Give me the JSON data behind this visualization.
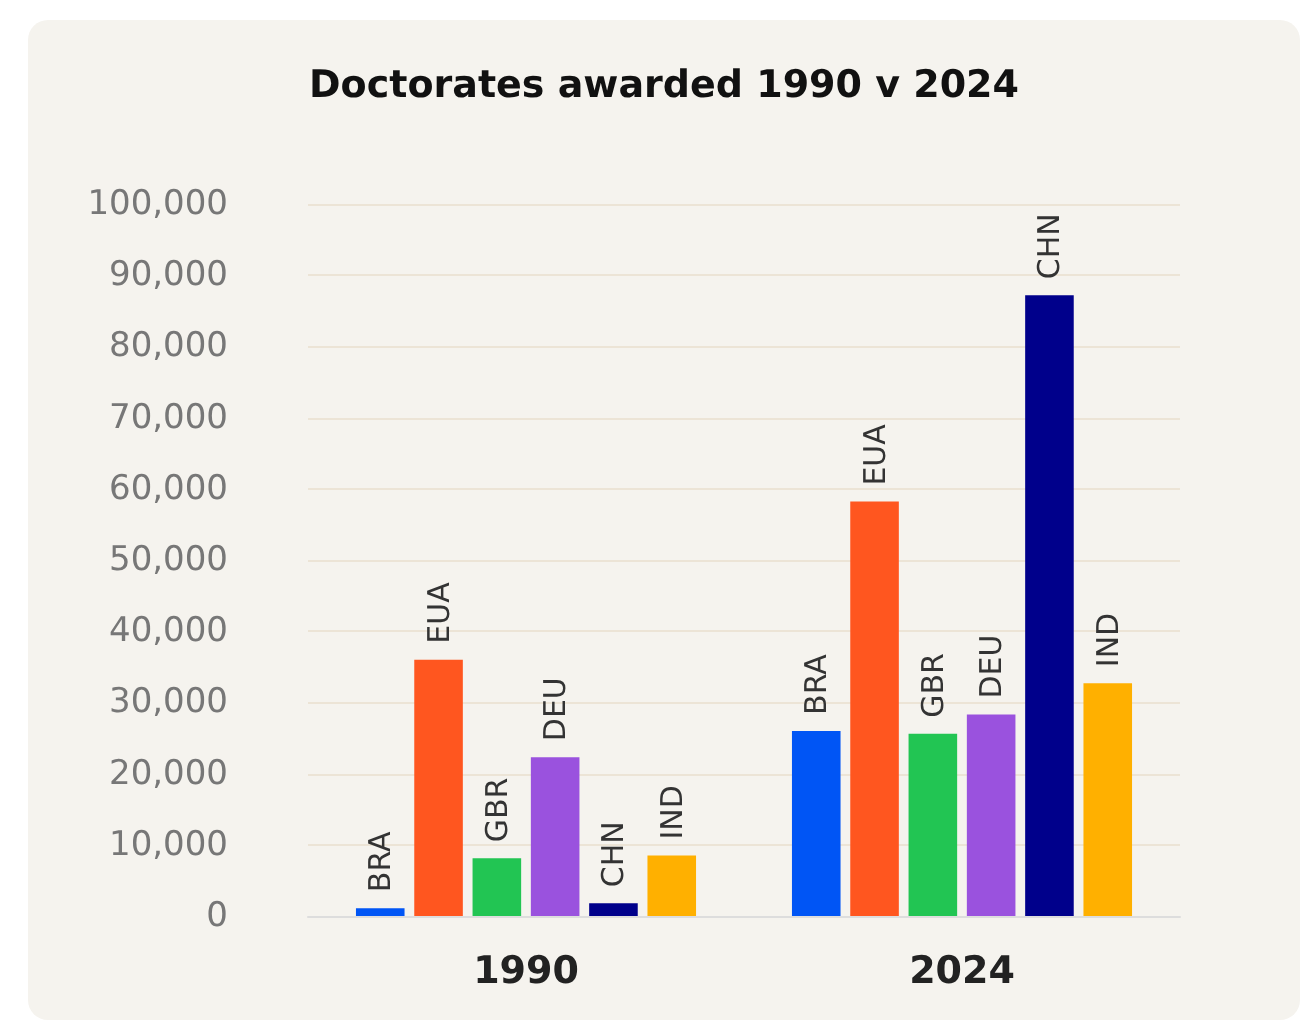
{
  "chart_data": {
    "type": "bar",
    "title": "Doctorates awarded 1990 v 2024",
    "categories": [
      "1990",
      "2024"
    ],
    "series": [
      {
        "name": "BRA",
        "color": "#0055f5",
        "values": [
          1100,
          26000
        ]
      },
      {
        "name": "EUA",
        "color": "#ff561f",
        "values": [
          36000,
          58200
        ]
      },
      {
        "name": "GBR",
        "color": "#22c553",
        "values": [
          8100,
          25600
        ]
      },
      {
        "name": "DEU",
        "color": "#9a52de",
        "values": [
          22300,
          28300
        ]
      },
      {
        "name": "CHN",
        "color": "#00008b",
        "values": [
          1800,
          87200
        ]
      },
      {
        "name": "IND",
        "color": "#ffb000",
        "values": [
          8500,
          32700
        ]
      }
    ],
    "ylim": [
      0,
      100000
    ],
    "yticks": [
      {
        "value": 0,
        "label": "0"
      },
      {
        "value": 10000,
        "label": "10,000"
      },
      {
        "value": 20000,
        "label": "20,000"
      },
      {
        "value": 30000,
        "label": "30,000"
      },
      {
        "value": 40000,
        "label": "40,000"
      },
      {
        "value": 50000,
        "label": "50,000"
      },
      {
        "value": 60000,
        "label": "60,000"
      },
      {
        "value": 70000,
        "label": "70,000"
      },
      {
        "value": 80000,
        "label": "80,000"
      },
      {
        "value": 90000,
        "label": "90,000"
      },
      {
        "value": 100000,
        "label": "100,000"
      }
    ],
    "grid": "y",
    "legend": false
  }
}
